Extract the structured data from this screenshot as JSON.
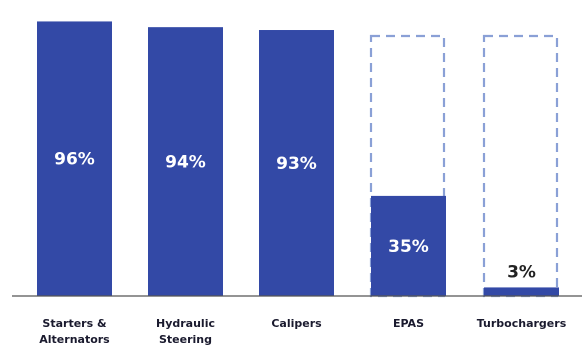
{
  "chart_data": {
    "type": "bar",
    "categories": [
      "Starters &\nAlternators",
      "Hydraulic\nSteering",
      "Calipers",
      "EPAS",
      "Turbochargers"
    ],
    "values": [
      96,
      94,
      93,
      35,
      3
    ],
    "value_labels": [
      "96%",
      "94%",
      "93%",
      "35%",
      "3%"
    ],
    "ylim": [
      0,
      100
    ],
    "dashed_outline_categories": [
      "EPAS",
      "Turbochargers"
    ],
    "grid": false,
    "colors": {
      "bar": "#3349a6",
      "outline": "#8aa0d6",
      "axis": "#555555"
    }
  }
}
